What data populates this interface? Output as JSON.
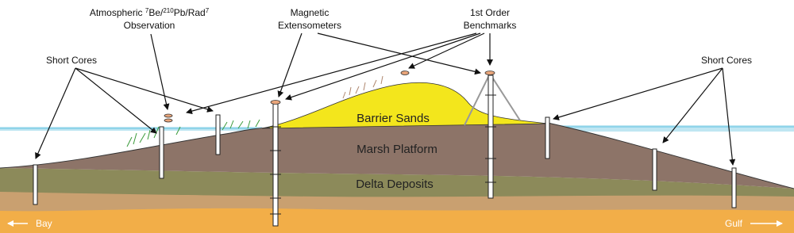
{
  "labels": {
    "atmospheric": {
      "line1": [
        "Atmospheric ",
        "7",
        "Be/",
        "210",
        "Pb/Rad",
        "7"
      ],
      "line2": "Observation"
    },
    "extensometers": [
      "Magnetic",
      "Extensometers"
    ],
    "benchmarks": [
      "1st Order",
      "Benchmarks"
    ],
    "short_cores_left": "Short Cores",
    "short_cores_right": "Short Cores"
  },
  "layers": [
    "Barrier Sands",
    "Marsh Platform",
    "Delta Deposits"
  ],
  "directions": {
    "bay": "Bay",
    "gulf": "Gulf"
  }
}
